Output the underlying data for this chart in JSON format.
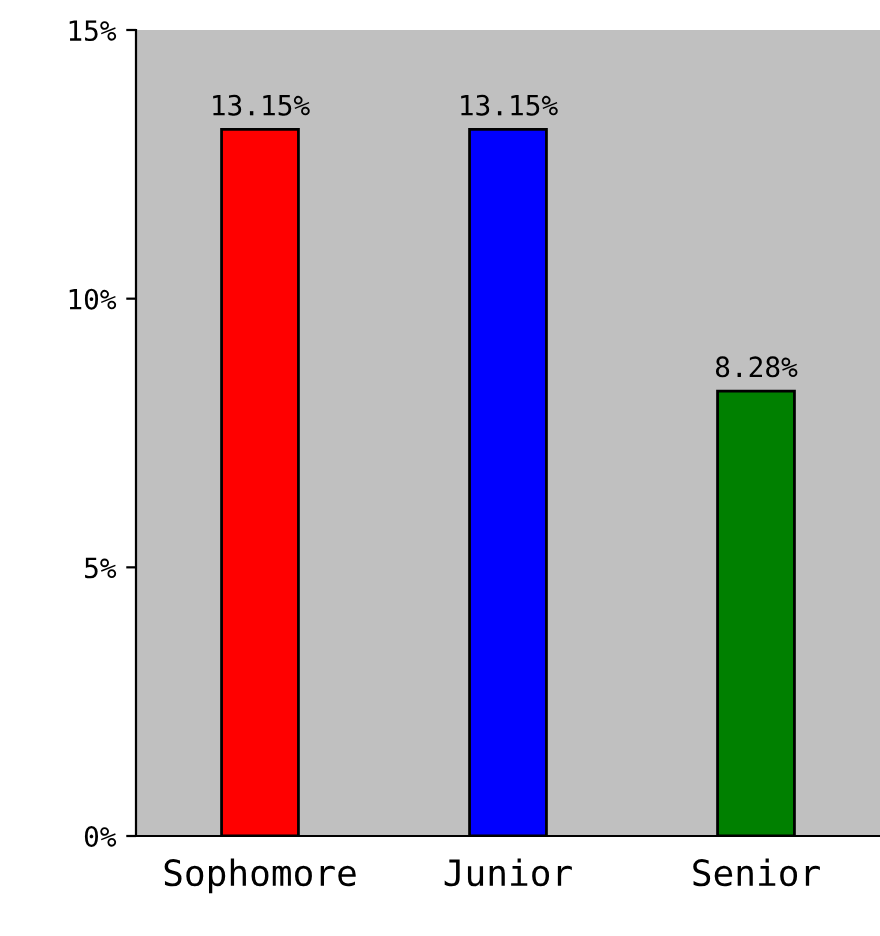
{
  "chart_data": {
    "type": "bar",
    "categories": [
      "Sophomore",
      "Junior",
      "Senior"
    ],
    "values": [
      13.15,
      13.15,
      8.28
    ],
    "colors": [
      "#ff0000",
      "#0000ff",
      "#008000"
    ],
    "value_labels": [
      "13.15%",
      "13.15%",
      "8.28%"
    ],
    "ylim": [
      0,
      15
    ],
    "yticks": [
      {
        "value": 0,
        "label": "0%"
      },
      {
        "value": 5,
        "label": "5%"
      },
      {
        "value": 10,
        "label": "10%"
      },
      {
        "value": 15,
        "label": "15%"
      }
    ],
    "grid": false
  }
}
